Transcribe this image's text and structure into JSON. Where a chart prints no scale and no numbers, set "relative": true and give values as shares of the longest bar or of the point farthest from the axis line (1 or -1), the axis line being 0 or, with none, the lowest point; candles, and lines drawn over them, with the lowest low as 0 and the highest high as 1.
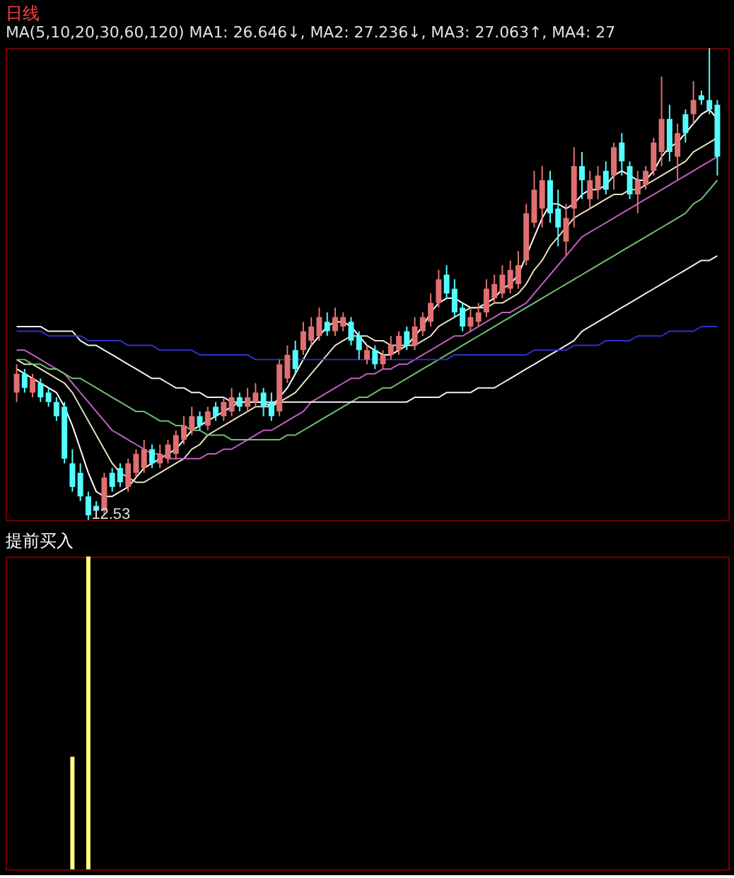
{
  "chart_data": [
    {
      "type": "candlestick",
      "relative": true,
      "title": "日线",
      "annotations": [
        "MA(5,10,20,30,60,120)",
        "MA1: 26.646↓,",
        "MA2: 27.236↓,",
        "MA3: 27.063↑,",
        "MA4: 27",
        "12.53"
      ],
      "legend": false,
      "grid": false,
      "marker": "none",
      "categories": [
        null,
        null,
        null,
        null,
        null,
        null,
        null,
        null,
        null,
        null,
        null,
        null,
        null,
        null,
        null,
        null,
        null,
        null,
        null,
        null,
        null,
        null,
        null,
        null,
        null,
        null,
        null,
        null,
        null,
        null,
        null,
        null,
        null,
        null,
        null,
        null,
        null,
        null,
        null,
        null,
        null,
        null,
        null,
        null,
        null,
        null,
        null,
        null,
        null,
        null,
        null,
        null,
        null,
        null,
        null,
        null,
        null,
        null,
        null,
        null,
        null,
        null,
        null,
        null,
        null,
        null,
        null,
        null,
        null,
        null,
        null,
        null,
        null,
        null,
        null,
        null,
        null,
        null,
        null,
        null,
        null,
        null,
        null,
        null,
        null,
        null,
        null,
        null,
        null
      ],
      "ohlc": [
        [
          0.27,
          0.33,
          0.25,
          0.31
        ],
        [
          0.31,
          0.32,
          0.27,
          0.28
        ],
        [
          0.27,
          0.31,
          0.26,
          0.3
        ],
        [
          0.29,
          0.3,
          0.25,
          0.26
        ],
        [
          0.27,
          0.28,
          0.24,
          0.25
        ],
        [
          0.25,
          0.26,
          0.21,
          0.22
        ],
        [
          0.24,
          0.25,
          0.12,
          0.13
        ],
        [
          0.12,
          0.15,
          0.06,
          0.07
        ],
        [
          0.1,
          0.12,
          0.04,
          0.05
        ],
        [
          0.05,
          0.06,
          0,
          0.01
        ],
        [
          0.03,
          0.04,
          0.01,
          0.02
        ],
        [
          0.02,
          0.1,
          0.01,
          0.09
        ],
        [
          0.1,
          0.11,
          0.06,
          0.07
        ],
        [
          0.11,
          0.12,
          0.07,
          0.08
        ],
        [
          0.07,
          0.13,
          0.06,
          0.12
        ],
        [
          0.1,
          0.15,
          0.09,
          0.14
        ],
        [
          0.11,
          0.17,
          0.1,
          0.15
        ],
        [
          0.15,
          0.16,
          0.11,
          0.12
        ],
        [
          0.12,
          0.16,
          0.11,
          0.14
        ],
        [
          0.13,
          0.17,
          0.12,
          0.16
        ],
        [
          0.14,
          0.19,
          0.13,
          0.18
        ],
        [
          0.17,
          0.22,
          0.16,
          0.2
        ],
        [
          0.19,
          0.24,
          0.18,
          0.22
        ],
        [
          0.22,
          0.23,
          0.19,
          0.2
        ],
        [
          0.2,
          0.24,
          0.19,
          0.23
        ],
        [
          0.24,
          0.25,
          0.21,
          0.22
        ],
        [
          0.22,
          0.26,
          0.21,
          0.25
        ],
        [
          0.23,
          0.28,
          0.22,
          0.26
        ],
        [
          0.26,
          0.27,
          0.23,
          0.24
        ],
        [
          0.24,
          0.28,
          0.23,
          0.26
        ],
        [
          0.25,
          0.29,
          0.24,
          0.27
        ],
        [
          0.27,
          0.28,
          0.22,
          0.24
        ],
        [
          0.25,
          0.27,
          0.21,
          0.22
        ],
        [
          0.23,
          0.34,
          0.22,
          0.33
        ],
        [
          0.3,
          0.37,
          0.29,
          0.35
        ],
        [
          0.36,
          0.38,
          0.31,
          0.32
        ],
        [
          0.36,
          0.42,
          0.35,
          0.4
        ],
        [
          0.38,
          0.43,
          0.37,
          0.41
        ],
        [
          0.39,
          0.45,
          0.38,
          0.43
        ],
        [
          0.42,
          0.44,
          0.39,
          0.4
        ],
        [
          0.4,
          0.45,
          0.39,
          0.43
        ],
        [
          0.41,
          0.44,
          0.4,
          0.43
        ],
        [
          0.42,
          0.43,
          0.37,
          0.38
        ],
        [
          0.39,
          0.4,
          0.34,
          0.36
        ],
        [
          0.34,
          0.37,
          0.33,
          0.36
        ],
        [
          0.36,
          0.37,
          0.32,
          0.33
        ],
        [
          0.33,
          0.36,
          0.32,
          0.35
        ],
        [
          0.35,
          0.39,
          0.34,
          0.37
        ],
        [
          0.36,
          0.4,
          0.35,
          0.39
        ],
        [
          0.4,
          0.41,
          0.36,
          0.37
        ],
        [
          0.37,
          0.43,
          0.36,
          0.41
        ],
        [
          0.4,
          0.44,
          0.39,
          0.43
        ],
        [
          0.42,
          0.48,
          0.41,
          0.46
        ],
        [
          0.46,
          0.53,
          0.45,
          0.51
        ],
        [
          0.52,
          0.54,
          0.47,
          0.48
        ],
        [
          0.49,
          0.51,
          0.43,
          0.44
        ],
        [
          0.45,
          0.46,
          0.4,
          0.41
        ],
        [
          0.41,
          0.45,
          0.4,
          0.43
        ],
        [
          0.42,
          0.46,
          0.41,
          0.44
        ],
        [
          0.44,
          0.51,
          0.43,
          0.49
        ],
        [
          0.47,
          0.52,
          0.46,
          0.5
        ],
        [
          0.48,
          0.54,
          0.47,
          0.52
        ],
        [
          0.49,
          0.55,
          0.48,
          0.53
        ],
        [
          0.5,
          0.57,
          0.49,
          0.54
        ],
        [
          0.55,
          0.67,
          0.54,
          0.65
        ],
        [
          0.63,
          0.74,
          0.62,
          0.7
        ],
        [
          0.66,
          0.75,
          0.62,
          0.72
        ],
        [
          0.72,
          0.74,
          0.63,
          0.65
        ],
        [
          0.66,
          0.7,
          0.58,
          0.62
        ],
        [
          0.59,
          0.67,
          0.56,
          0.64
        ],
        [
          0.66,
          0.79,
          0.62,
          0.75
        ],
        [
          0.75,
          0.78,
          0.68,
          0.72
        ],
        [
          0.68,
          0.74,
          0.66,
          0.72
        ],
        [
          0.7,
          0.75,
          0.68,
          0.73
        ],
        [
          0.74,
          0.76,
          0.69,
          0.7
        ],
        [
          0.73,
          0.8,
          0.7,
          0.79
        ],
        [
          0.8,
          0.82,
          0.73,
          0.76
        ],
        [
          0.75,
          0.76,
          0.68,
          0.69
        ],
        [
          0.69,
          0.74,
          0.65,
          0.72
        ],
        [
          0.71,
          0.75,
          0.7,
          0.74
        ],
        [
          0.74,
          0.81,
          0.73,
          0.8
        ],
        [
          0.78,
          0.94,
          0.75,
          0.85
        ],
        [
          0.85,
          0.88,
          0.76,
          0.78
        ],
        [
          0.77,
          0.84,
          0.72,
          0.82
        ],
        [
          0.86,
          0.87,
          0.8,
          0.82
        ],
        [
          0.86,
          0.93,
          0.84,
          0.89
        ],
        [
          0.9,
          0.91,
          0.88,
          0.89
        ],
        [
          0.89,
          1,
          0.86,
          0.87
        ],
        [
          0.88,
          0.89,
          0.73,
          0.77
        ]
      ],
      "colors": [
        "#e07070",
        "#54fcfc",
        "#e07070",
        "#54fcfc",
        "#54fcfc",
        "#54fcfc",
        "#54fcfc",
        "#54fcfc",
        "#54fcfc",
        "#54fcfc",
        "#54fcfc",
        "#e07070",
        "#54fcfc",
        "#54fcfc",
        "#e07070",
        "#e07070",
        "#e07070",
        "#54fcfc",
        "#e07070",
        "#e07070",
        "#e07070",
        "#e07070",
        "#e07070",
        "#54fcfc",
        "#e07070",
        "#54fcfc",
        "#e07070",
        "#e07070",
        "#54fcfc",
        "#e07070",
        "#e07070",
        "#54fcfc",
        "#54fcfc",
        "#e07070",
        "#e07070",
        "#54fcfc",
        "#e07070",
        "#e07070",
        "#e07070",
        "#54fcfc",
        "#e07070",
        "#e07070",
        "#54fcfc",
        "#54fcfc",
        "#e07070",
        "#54fcfc",
        "#e07070",
        "#e07070",
        "#e07070",
        "#54fcfc",
        "#e07070",
        "#e07070",
        "#e07070",
        "#e07070",
        "#54fcfc",
        "#54fcfc",
        "#54fcfc",
        "#e07070",
        "#e07070",
        "#e07070",
        "#e07070",
        "#e07070",
        "#e07070",
        "#e07070",
        "#e07070",
        "#e07070",
        "#e07070",
        "#54fcfc",
        "#54fcfc",
        "#e07070",
        "#e07070",
        "#54fcfc",
        "#e07070",
        "#e07070",
        "#54fcfc",
        "#e07070",
        "#54fcfc",
        "#54fcfc",
        "#e07070",
        "#e07070",
        "#e07070",
        "#e07070",
        "#54fcfc",
        "#e07070",
        "#54fcfc",
        "#e07070",
        "#54fcfc",
        "#54fcfc",
        "#54fcfc"
      ],
      "series": [
        {
          "type": "line",
          "color": "#ffffff",
          "values": [
            0.32,
            0.31,
            0.3,
            0.29,
            0.28,
            0.27,
            0.24,
            0.2,
            0.15,
            0.1,
            0.06,
            0.05,
            0.05,
            0.06,
            0.07,
            0.09,
            0.11,
            0.12,
            0.13,
            0.14,
            0.15,
            0.17,
            0.19,
            0.2,
            0.21,
            0.22,
            0.23,
            0.24,
            0.25,
            0.25,
            0.25,
            0.25,
            0.24,
            0.26,
            0.28,
            0.31,
            0.34,
            0.37,
            0.39,
            0.41,
            0.42,
            0.42,
            0.41,
            0.39,
            0.37,
            0.36,
            0.35,
            0.35,
            0.36,
            0.37,
            0.39,
            0.41,
            0.44,
            0.46,
            0.47,
            0.47,
            0.46,
            0.45,
            0.45,
            0.46,
            0.47,
            0.49,
            0.5,
            0.52,
            0.56,
            0.6,
            0.64,
            0.67,
            0.67,
            0.66,
            0.67,
            0.69,
            0.7,
            0.7,
            0.71,
            0.73,
            0.74,
            0.73,
            0.72,
            0.72,
            0.74,
            0.77,
            0.79,
            0.8,
            0.82,
            0.84,
            0.86,
            0.87,
            0.85
          ]
        },
        {
          "type": "line",
          "color": "#e8e0c0",
          "values": [
            0.34,
            0.33,
            0.33,
            0.32,
            0.31,
            0.3,
            0.29,
            0.27,
            0.24,
            0.21,
            0.18,
            0.15,
            0.12,
            0.1,
            0.09,
            0.08,
            0.08,
            0.09,
            0.1,
            0.11,
            0.12,
            0.13,
            0.15,
            0.16,
            0.18,
            0.19,
            0.2,
            0.21,
            0.22,
            0.23,
            0.24,
            0.24,
            0.24,
            0.25,
            0.26,
            0.27,
            0.29,
            0.31,
            0.33,
            0.35,
            0.37,
            0.38,
            0.39,
            0.39,
            0.39,
            0.38,
            0.38,
            0.37,
            0.37,
            0.37,
            0.37,
            0.38,
            0.39,
            0.41,
            0.42,
            0.43,
            0.44,
            0.45,
            0.45,
            0.45,
            0.46,
            0.46,
            0.47,
            0.48,
            0.5,
            0.53,
            0.55,
            0.58,
            0.6,
            0.62,
            0.64,
            0.65,
            0.66,
            0.67,
            0.68,
            0.69,
            0.69,
            0.7,
            0.7,
            0.71,
            0.72,
            0.73,
            0.74,
            0.75,
            0.76,
            0.78,
            0.79,
            0.8,
            0.81
          ]
        },
        {
          "type": "line",
          "color": "#c060c0",
          "values": [
            0.36,
            0.36,
            0.35,
            0.34,
            0.33,
            0.32,
            0.31,
            0.29,
            0.27,
            0.25,
            0.23,
            0.21,
            0.19,
            0.18,
            0.17,
            0.16,
            0.15,
            0.14,
            0.14,
            0.13,
            0.13,
            0.13,
            0.13,
            0.13,
            0.14,
            0.14,
            0.15,
            0.15,
            0.16,
            0.17,
            0.18,
            0.19,
            0.19,
            0.2,
            0.21,
            0.22,
            0.23,
            0.25,
            0.26,
            0.27,
            0.28,
            0.29,
            0.3,
            0.3,
            0.31,
            0.31,
            0.32,
            0.32,
            0.33,
            0.33,
            0.34,
            0.35,
            0.36,
            0.37,
            0.38,
            0.39,
            0.39,
            0.4,
            0.41,
            0.42,
            0.43,
            0.44,
            0.44,
            0.45,
            0.46,
            0.48,
            0.5,
            0.52,
            0.54,
            0.56,
            0.58,
            0.6,
            0.61,
            0.62,
            0.63,
            0.64,
            0.65,
            0.66,
            0.67,
            0.68,
            0.69,
            0.7,
            0.71,
            0.72,
            0.73,
            0.74,
            0.75,
            0.76,
            0.77
          ]
        },
        {
          "type": "line",
          "color": "#70c070",
          "values": [
            0.34,
            0.34,
            0.33,
            0.33,
            0.32,
            0.32,
            0.31,
            0.3,
            0.3,
            0.29,
            0.28,
            0.27,
            0.26,
            0.25,
            0.24,
            0.23,
            0.23,
            0.22,
            0.21,
            0.21,
            0.2,
            0.2,
            0.19,
            0.19,
            0.18,
            0.18,
            0.18,
            0.17,
            0.17,
            0.17,
            0.17,
            0.17,
            0.17,
            0.17,
            0.18,
            0.18,
            0.19,
            0.2,
            0.21,
            0.22,
            0.23,
            0.24,
            0.25,
            0.26,
            0.26,
            0.27,
            0.28,
            0.28,
            0.29,
            0.3,
            0.31,
            0.32,
            0.33,
            0.34,
            0.35,
            0.36,
            0.37,
            0.38,
            0.39,
            0.4,
            0.41,
            0.42,
            0.43,
            0.44,
            0.45,
            0.46,
            0.47,
            0.48,
            0.49,
            0.5,
            0.51,
            0.52,
            0.53,
            0.54,
            0.55,
            0.56,
            0.57,
            0.58,
            0.59,
            0.6,
            0.61,
            0.62,
            0.63,
            0.64,
            0.65,
            0.67,
            0.68,
            0.7,
            0.72
          ]
        },
        {
          "type": "line",
          "color": "#f0f0f0",
          "values": [
            0.41,
            0.41,
            0.41,
            0.41,
            0.4,
            0.4,
            0.4,
            0.4,
            0.38,
            0.37,
            0.37,
            0.36,
            0.35,
            0.34,
            0.33,
            0.32,
            0.31,
            0.3,
            0.3,
            0.29,
            0.28,
            0.28,
            0.27,
            0.27,
            0.26,
            0.26,
            0.26,
            0.25,
            0.25,
            0.25,
            0.25,
            0.25,
            0.25,
            0.25,
            0.25,
            0.25,
            0.25,
            0.25,
            0.25,
            0.25,
            0.25,
            0.25,
            0.25,
            0.25,
            0.25,
            0.25,
            0.25,
            0.25,
            0.25,
            0.25,
            0.26,
            0.26,
            0.26,
            0.26,
            0.27,
            0.27,
            0.27,
            0.27,
            0.28,
            0.28,
            0.28,
            0.29,
            0.3,
            0.31,
            0.32,
            0.33,
            0.34,
            0.35,
            0.36,
            0.37,
            0.38,
            0.4,
            0.41,
            0.42,
            0.43,
            0.44,
            0.45,
            0.46,
            0.47,
            0.48,
            0.49,
            0.5,
            0.51,
            0.52,
            0.53,
            0.54,
            0.55,
            0.55,
            0.56
          ]
        },
        {
          "type": "line",
          "color": "#3030c8",
          "values": [
            0.4,
            0.4,
            0.4,
            0.4,
            0.39,
            0.39,
            0.39,
            0.39,
            0.39,
            0.38,
            0.38,
            0.38,
            0.38,
            0.38,
            0.37,
            0.37,
            0.37,
            0.37,
            0.36,
            0.36,
            0.36,
            0.36,
            0.36,
            0.35,
            0.35,
            0.35,
            0.35,
            0.35,
            0.35,
            0.35,
            0.34,
            0.34,
            0.34,
            0.34,
            0.34,
            0.34,
            0.34,
            0.34,
            0.34,
            0.34,
            0.34,
            0.34,
            0.34,
            0.34,
            0.34,
            0.34,
            0.34,
            0.34,
            0.34,
            0.34,
            0.34,
            0.34,
            0.34,
            0.34,
            0.34,
            0.35,
            0.35,
            0.35,
            0.35,
            0.35,
            0.35,
            0.35,
            0.35,
            0.35,
            0.35,
            0.36,
            0.36,
            0.36,
            0.36,
            0.36,
            0.37,
            0.37,
            0.37,
            0.37,
            0.38,
            0.38,
            0.38,
            0.38,
            0.39,
            0.39,
            0.39,
            0.39,
            0.4,
            0.4,
            0.4,
            0.4,
            0.41,
            0.41,
            0.41
          ]
        }
      ]
    },
    {
      "type": "bar",
      "relative": true,
      "title": "提前买入",
      "color": "#ffff80",
      "legend": false,
      "grid": false,
      "categories": [
        null,
        null,
        null,
        null,
        null,
        null,
        null,
        null,
        null,
        null,
        null,
        null,
        null,
        null,
        null,
        null,
        null,
        null,
        null,
        null,
        null,
        null,
        null,
        null,
        null,
        null,
        null,
        null,
        null,
        null,
        null,
        null,
        null,
        null,
        null,
        null,
        null,
        null,
        null,
        null,
        null,
        null,
        null,
        null,
        null,
        null,
        null,
        null,
        null,
        null,
        null,
        null,
        null,
        null,
        null,
        null,
        null,
        null,
        null,
        null,
        null,
        null,
        null,
        null,
        null,
        null,
        null,
        null,
        null,
        null,
        null,
        null,
        null,
        null,
        null,
        null,
        null,
        null,
        null,
        null,
        null,
        null,
        null,
        null,
        null,
        null,
        null,
        null,
        null
      ],
      "values": [
        null,
        null,
        null,
        null,
        null,
        null,
        null,
        0.36,
        null,
        1,
        null,
        null,
        null,
        null,
        null,
        null,
        null,
        null,
        null,
        null,
        null,
        null,
        null,
        null,
        null,
        null,
        null,
        null,
        null,
        null,
        null,
        null,
        null,
        null,
        null,
        null,
        null,
        null,
        null,
        null,
        null,
        null,
        null,
        null,
        null,
        null,
        null,
        null,
        null,
        null,
        null,
        null,
        null,
        null,
        null,
        null,
        null,
        null,
        null,
        null,
        null,
        null,
        null,
        null,
        null,
        null,
        null,
        null,
        null,
        null,
        null,
        null,
        null,
        null,
        null,
        null,
        null,
        null,
        null,
        null,
        null,
        null,
        null,
        null,
        null,
        null,
        null,
        null,
        null
      ]
    }
  ]
}
